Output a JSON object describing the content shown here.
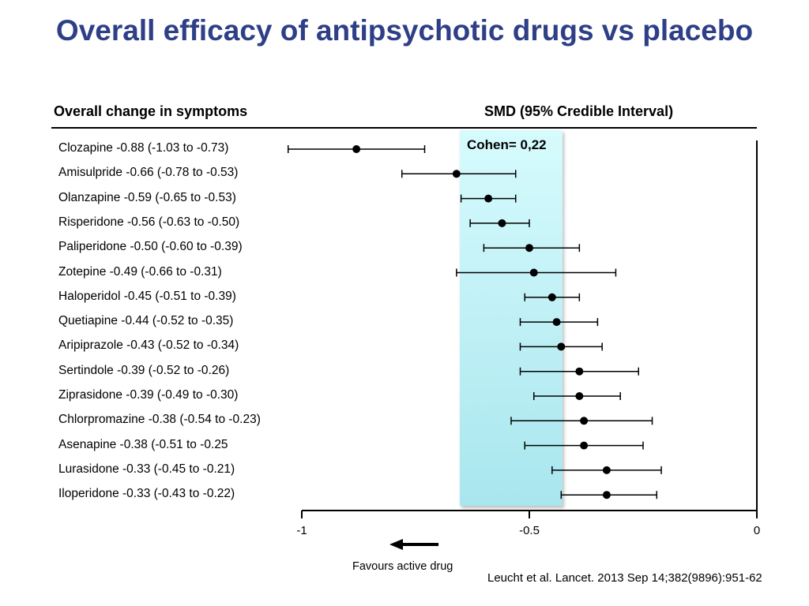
{
  "title": "Overall efficacy of antipsychotic drugs vs placebo",
  "header_left": "Overall change in symptoms",
  "header_right": "SMD (95% Credible Interval)",
  "cohen_label": "Cohen= 0,22",
  "favours_label": "Favours active drug",
  "citation": "Leucht et al. Lancet. 2013 Sep 14;382(9896):951-62",
  "chart_data": {
    "type": "forest",
    "xlim": [
      -1,
      0
    ],
    "x_ticks": [
      {
        "value": -1,
        "label": "-1"
      },
      {
        "value": -0.5,
        "label": "-0.5"
      },
      {
        "value": 0,
        "label": "0"
      }
    ],
    "reference_band": {
      "label": "Cohen= 0,22",
      "from": -0.66,
      "to": -0.44
    },
    "series": [
      {
        "label": "Clozapine -0.88 (-1.03 to -0.73)",
        "estimate": -0.88,
        "lower": -1.03,
        "upper": -0.73
      },
      {
        "label": "Amisulpride -0.66 (-0.78 to -0.53)",
        "estimate": -0.66,
        "lower": -0.78,
        "upper": -0.53
      },
      {
        "label": "Olanzapine -0.59 (-0.65 to -0.53)",
        "estimate": -0.59,
        "lower": -0.65,
        "upper": -0.53
      },
      {
        "label": "Risperidone -0.56 (-0.63 to -0.50)",
        "estimate": -0.56,
        "lower": -0.63,
        "upper": -0.5
      },
      {
        "label": "Paliperidone -0.50 (-0.60 to -0.39)",
        "estimate": -0.5,
        "lower": -0.6,
        "upper": -0.39
      },
      {
        "label": "Zotepine -0.49 (-0.66 to -0.31)",
        "estimate": -0.49,
        "lower": -0.66,
        "upper": -0.31
      },
      {
        "label": "Haloperidol -0.45 (-0.51 to -0.39)",
        "estimate": -0.45,
        "lower": -0.51,
        "upper": -0.39
      },
      {
        "label": "Quetiapine -0.44 (-0.52 to -0.35)",
        "estimate": -0.44,
        "lower": -0.52,
        "upper": -0.35
      },
      {
        "label": "Aripiprazole -0.43 (-0.52 to -0.34)",
        "estimate": -0.43,
        "lower": -0.52,
        "upper": -0.34
      },
      {
        "label": "Sertindole -0.39 (-0.52 to -0.26)",
        "estimate": -0.39,
        "lower": -0.52,
        "upper": -0.26
      },
      {
        "label": "Ziprasidone -0.39 (-0.49 to -0.30)",
        "estimate": -0.39,
        "lower": -0.49,
        "upper": -0.3
      },
      {
        "label": "Chlorpromazine -0.38 (-0.54 to -0.23)",
        "estimate": -0.38,
        "lower": -0.54,
        "upper": -0.23
      },
      {
        "label": "Asenapine -0.38 (-0.51 to -0.25",
        "estimate": -0.38,
        "lower": -0.51,
        "upper": -0.25
      },
      {
        "label": "Lurasidone -0.33 (-0.45 to -0.21)",
        "estimate": -0.33,
        "lower": -0.45,
        "upper": -0.21
      },
      {
        "label": "Iloperidone -0.33 (-0.43 to -0.22)",
        "estimate": -0.33,
        "lower": -0.43,
        "upper": -0.22
      }
    ]
  }
}
